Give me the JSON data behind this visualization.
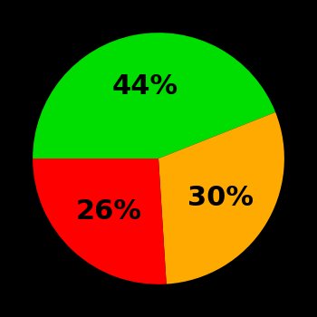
{
  "slices": [
    44,
    30,
    26
  ],
  "colors": [
    "#00dd00",
    "#ffaa00",
    "#ff0000"
  ],
  "labels": [
    "44%",
    "30%",
    "26%"
  ],
  "background_color": "#000000",
  "label_fontsize": 22,
  "startangle": 180,
  "counterclock": false,
  "figsize": [
    3.5,
    3.5
  ],
  "dpi": 100,
  "label_r": 0.58
}
